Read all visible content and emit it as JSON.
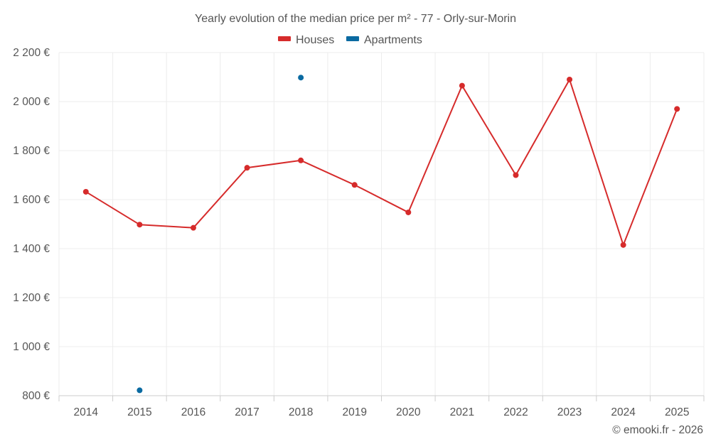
{
  "chart_data": {
    "type": "line",
    "title": "Yearly evolution of the median price per m² - 77 - Orly-sur-Morin",
    "categories": [
      "2014",
      "2015",
      "2016",
      "2017",
      "2018",
      "2019",
      "2020",
      "2021",
      "2022",
      "2023",
      "2024",
      "2025"
    ],
    "series": [
      {
        "name": "Houses",
        "color": "#d62b2b",
        "values": [
          1632,
          1498,
          1485,
          1730,
          1760,
          1660,
          1548,
          2065,
          1700,
          2090,
          1415,
          1970
        ]
      },
      {
        "name": "Apartments",
        "color": "#0a6aa1",
        "values": [
          null,
          822,
          null,
          null,
          2098,
          null,
          null,
          null,
          null,
          null,
          null,
          null
        ]
      }
    ],
    "ylim": [
      800,
      2200
    ],
    "yticks": [
      800,
      1000,
      1200,
      1400,
      1600,
      1800,
      2000,
      2200
    ],
    "ytick_labels": [
      "800 €",
      "1 000 €",
      "1 200 €",
      "1 400 €",
      "1 600 €",
      "1 800 €",
      "2 000 €",
      "2 200 €"
    ],
    "grid": true,
    "legend_position": "top-center",
    "credit": "© emooki.fr - 2026"
  }
}
